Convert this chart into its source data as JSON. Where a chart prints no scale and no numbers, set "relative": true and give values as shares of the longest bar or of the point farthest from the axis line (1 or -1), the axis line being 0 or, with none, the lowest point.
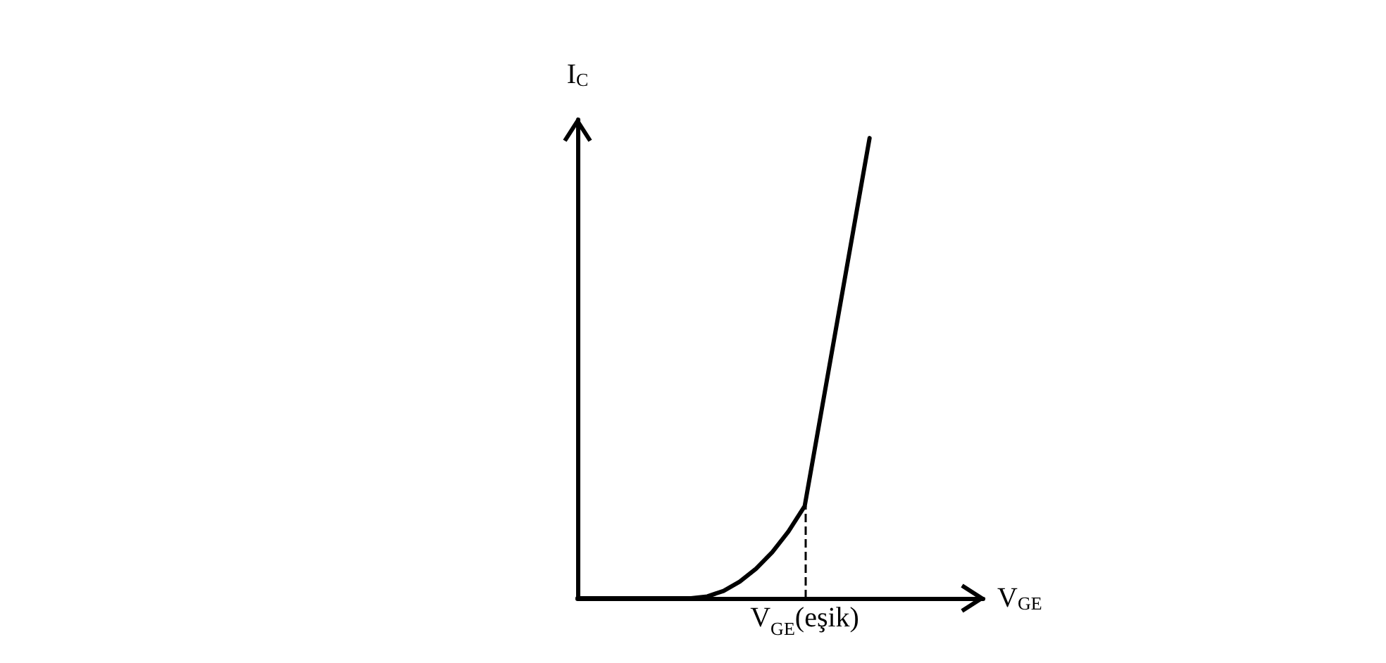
{
  "chart_data": {
    "type": "line",
    "relative": true,
    "xlabel": "V$_{GE}$",
    "ylabel": "I$_{C}$",
    "categories": [
      null,
      null,
      null,
      null,
      null,
      null,
      null,
      null,
      null,
      null,
      null,
      null,
      null,
      null,
      null,
      null,
      null,
      null,
      null,
      null,
      null,
      null,
      null,
      null,
      null,
      null
    ],
    "annotations": [
      "V$_{GE}$(eşik)"
    ],
    "series": [
      {
        "color": "#000000",
        "values": [
          0,
          0,
          0,
          0,
          0,
          0,
          0,
          0,
          0.004,
          0.016,
          0.036,
          0.064,
          0.1,
          0.145,
          0.2,
          0.4,
          0.6,
          0.8,
          1,
          null,
          null,
          null,
          null,
          null,
          null,
          null
        ]
      }
    ],
    "marker": "none",
    "line_style": "solid"
  }
}
